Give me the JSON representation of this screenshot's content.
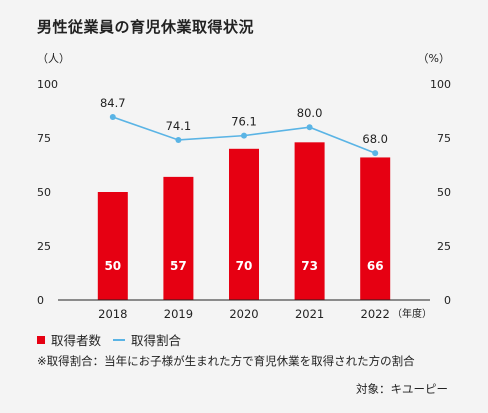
{
  "chart_data": {
    "type": "bar+line",
    "title": "男性従業員の育児休業取得状況",
    "left_unit": "（人）",
    "right_unit": "（%）",
    "x_unit": "（年度）",
    "categories": [
      "2018",
      "2019",
      "2020",
      "2021",
      "2022"
    ],
    "ylim": [
      0,
      100
    ],
    "y_ticks": [
      0,
      25,
      50,
      75,
      100
    ],
    "series": [
      {
        "name": "取得者数",
        "type": "bar",
        "axis": "left",
        "color": "#e60012",
        "values": [
          50,
          57,
          70,
          73,
          66
        ]
      },
      {
        "name": "取得割合",
        "type": "line",
        "axis": "right",
        "color": "#5ab4e5",
        "values": [
          84.7,
          74.1,
          76.1,
          80.0,
          68.0
        ],
        "labels": [
          "84.7",
          "74.1",
          "76.1",
          "80.0",
          "68.0"
        ]
      }
    ],
    "grid": false,
    "legend_position": "bottom-left"
  },
  "note": "※取得割合：当年にお子様が生まれた方で育児休業を取得された方の割合",
  "source": "対象：キユーピー"
}
